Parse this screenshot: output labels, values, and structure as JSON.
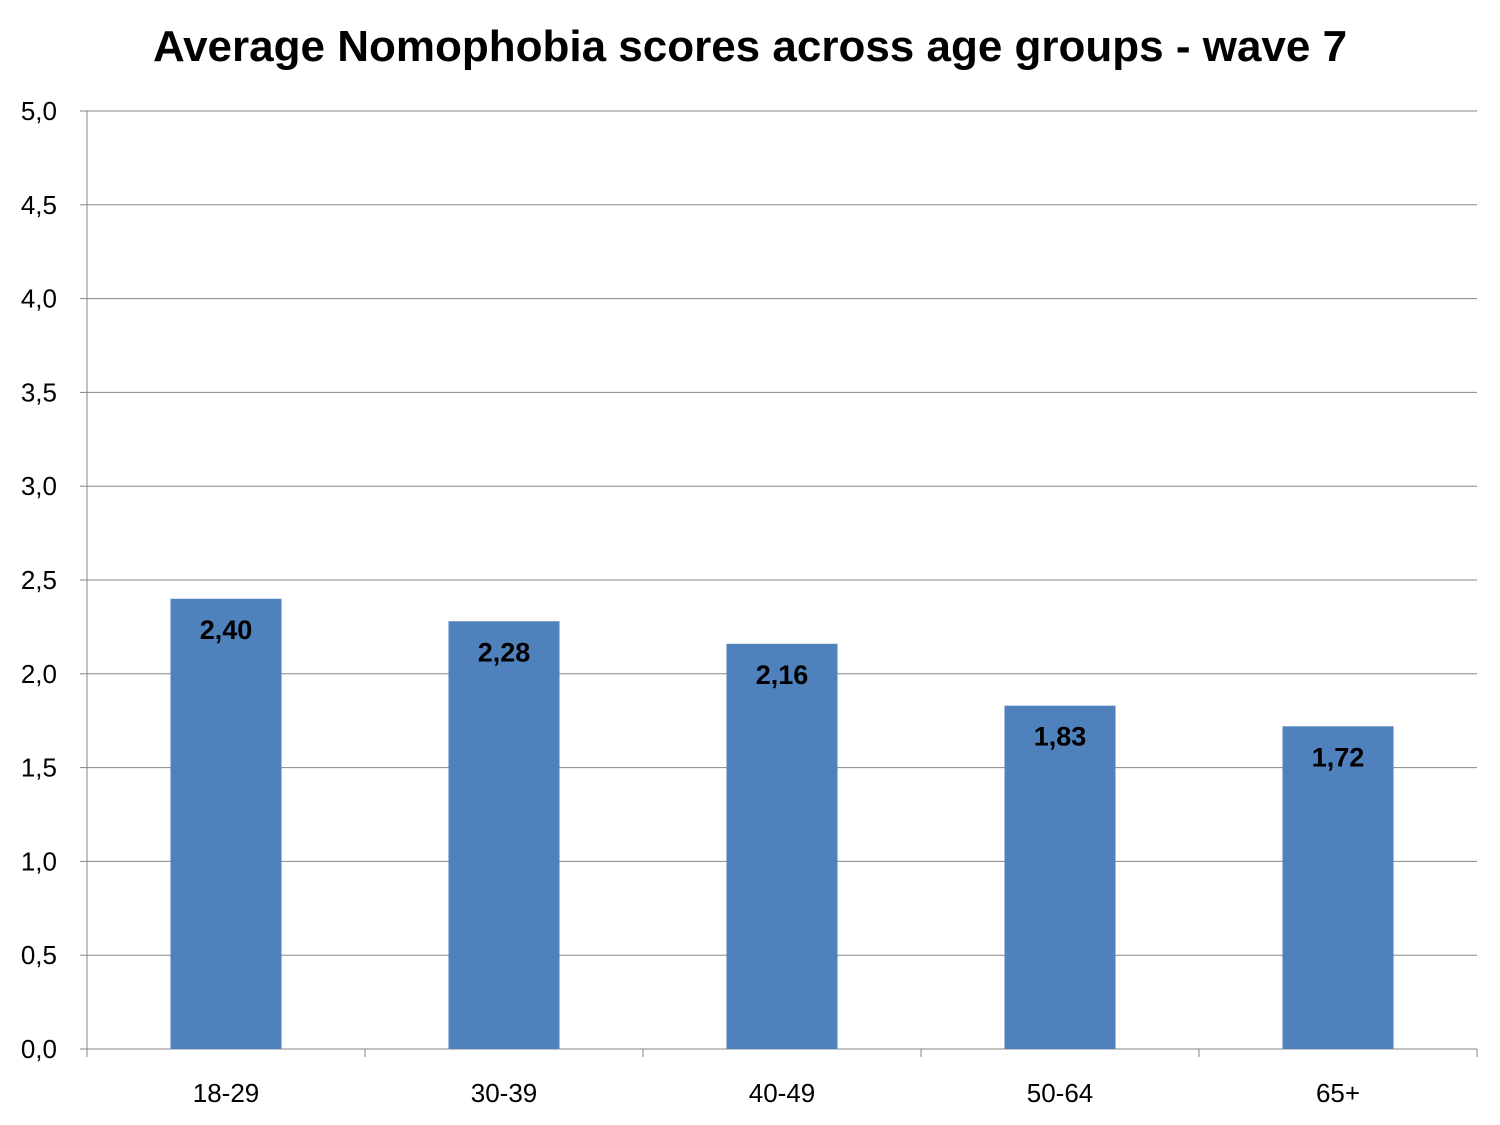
{
  "chart_data": {
    "type": "bar",
    "title": "Average Nomophobia scores across age groups - wave 7",
    "xlabel": "",
    "ylabel": "",
    "categories": [
      "18-29",
      "30-39",
      "40-49",
      "50-64",
      "65+"
    ],
    "values": [
      2.4,
      2.28,
      2.16,
      1.83,
      1.72
    ],
    "value_labels": [
      "2,40",
      "2,28",
      "2,16",
      "1,83",
      "1,72"
    ],
    "ylim": [
      0,
      5
    ],
    "yticks": [
      0,
      0.5,
      1,
      1.5,
      2,
      2.5,
      3,
      3.5,
      4,
      4.5,
      5
    ],
    "ytick_labels": [
      "0,0",
      "0,5",
      "1,0",
      "1,5",
      "2,0",
      "2,5",
      "3,0",
      "3,5",
      "4,0",
      "4,5",
      "5,0"
    ],
    "grid": true,
    "legend": "none",
    "bar_color": "#4F81BD",
    "grid_color": "#868686",
    "axis_color": "#868686"
  }
}
